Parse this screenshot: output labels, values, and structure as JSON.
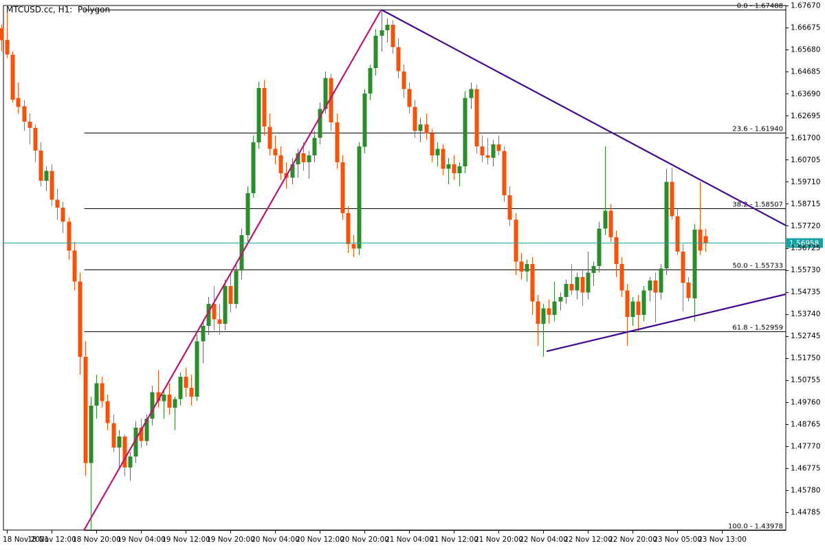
{
  "window": {
    "title": "MTCUSD.cc, H1:  Polygon"
  },
  "current_price": {
    "value": "1.56958"
  },
  "colors": {
    "background": "#ffffff",
    "bull_candle": "#2a8c2a",
    "bear_candle": "#f95208",
    "fib_line": "#000000",
    "trend_purple": "#41078f",
    "trend_magenta": "#bd1272",
    "price_line": "#1aa3a3",
    "badge_bg": "#17a2a2",
    "badge_text": "#ffffff",
    "axis_text": "#000000"
  },
  "chart_data": {
    "type": "candlestick",
    "symbol": "MTCUSD.cc",
    "timeframe": "H1",
    "data_source": "Polygon",
    "title": "MTCUSD.cc, H1:  Polygon",
    "legend_position": "none",
    "grid": "off",
    "y_axis_side": "right",
    "y_axis_ticks": [
      "1.67670",
      "1.66675",
      "1.65680",
      "1.64685",
      "1.63690",
      "1.62695",
      "1.61700",
      "1.60705",
      "1.59710",
      "1.58715",
      "1.57720",
      "1.56725",
      "1.55730",
      "1.54735",
      "1.53740",
      "1.52745",
      "1.51750",
      "1.50755",
      "1.49760",
      "1.48765",
      "1.47770",
      "1.46775",
      "1.45780",
      "1.44785"
    ],
    "y_range": [
      1.43978,
      1.6767
    ],
    "x_labels": [
      {
        "label": "18 Nov 2021",
        "index": 1
      },
      {
        "label": "18 Nov 12:00",
        "index": 9
      },
      {
        "label": "18 Nov 20:00",
        "index": 17
      },
      {
        "label": "19 Nov 04:00",
        "index": 25
      },
      {
        "label": "19 Nov 12:00",
        "index": 33
      },
      {
        "label": "19 Nov 20:00",
        "index": 41
      },
      {
        "label": "20 Nov 04:00",
        "index": 49
      },
      {
        "label": "20 Nov 12:00",
        "index": 57
      },
      {
        "label": "20 Nov 20:00",
        "index": 65
      },
      {
        "label": "21 Nov 04:00",
        "index": 73
      },
      {
        "label": "21 Nov 12:00",
        "index": 81
      },
      {
        "label": "21 Nov 20:00",
        "index": 89
      },
      {
        "label": "22 Nov 04:00",
        "index": 97
      },
      {
        "label": "22 Nov 12:00",
        "index": 105
      },
      {
        "label": "22 Nov 20:00",
        "index": 113
      },
      {
        "label": "23 Nov 05:00",
        "index": 121
      },
      {
        "label": "23 Nov 13:00",
        "index": 129
      }
    ],
    "fib_levels": [
      {
        "level": "0.0",
        "price": 1.67488
      },
      {
        "level": "23.6",
        "price": 1.6194
      },
      {
        "level": "38.2",
        "price": 1.58507
      },
      {
        "level": "50.0",
        "price": 1.55733
      },
      {
        "level": "61.8",
        "price": 1.52959
      },
      {
        "level": "100.0",
        "price": 1.43978
      }
    ],
    "fib_start_index": 14.8,
    "trendlines": [
      {
        "name": "impulse-up",
        "color": "trend_magenta",
        "from": {
          "index": 14.8,
          "price": 1.43978
        },
        "to": {
          "index": 68,
          "price": 1.67488
        }
      },
      {
        "name": "triangle-resistance",
        "color": "trend_purple",
        "from": {
          "index": 68,
          "price": 1.67488
        },
        "to": {
          "index": 140.4,
          "price": 1.5774
        }
      },
      {
        "name": "triangle-support",
        "color": "trend_purple",
        "from": {
          "index": 97.6,
          "price": 1.52051
        },
        "to": {
          "index": 140.4,
          "price": 1.54629
        }
      }
    ],
    "candles_ohlc": [
      [
        1.6665,
        1.668,
        1.656,
        1.661
      ],
      [
        1.6612,
        1.6736,
        1.653,
        1.6546
      ],
      [
        1.6546,
        1.656,
        1.633,
        1.6342
      ],
      [
        1.635,
        1.642,
        1.628,
        1.631
      ],
      [
        1.6312,
        1.634,
        1.62,
        1.6242
      ],
      [
        1.6242,
        1.628,
        1.614,
        1.6215
      ],
      [
        1.6215,
        1.623,
        1.606,
        1.6112
      ],
      [
        1.6112,
        1.615,
        1.595,
        1.5975
      ],
      [
        1.5975,
        1.604,
        1.593,
        1.602
      ],
      [
        1.602,
        1.605,
        1.586,
        1.589
      ],
      [
        1.589,
        1.594,
        1.58,
        1.5855
      ],
      [
        1.5855,
        1.588,
        1.574,
        1.579
      ],
      [
        1.579,
        1.581,
        1.562,
        1.566
      ],
      [
        1.566,
        1.57,
        1.548,
        1.552
      ],
      [
        1.552,
        1.556,
        1.51,
        1.518
      ],
      [
        1.518,
        1.525,
        1.4641,
        1.47
      ],
      [
        1.47,
        1.5,
        1.4398,
        1.496
      ],
      [
        1.496,
        1.51,
        1.49,
        1.506
      ],
      [
        1.506,
        1.509,
        1.495,
        1.498
      ],
      [
        1.498,
        1.501,
        1.485,
        1.488
      ],
      [
        1.488,
        1.492,
        1.475,
        1.477
      ],
      [
        1.477,
        1.485,
        1.468,
        1.482
      ],
      [
        1.482,
        1.483,
        1.464,
        1.468
      ],
      [
        1.468,
        1.475,
        1.462,
        1.473
      ],
      [
        1.473,
        1.489,
        1.47,
        1.486
      ],
      [
        1.486,
        1.49,
        1.477,
        1.48
      ],
      [
        1.48,
        1.492,
        1.478,
        1.49
      ],
      [
        1.49,
        1.505,
        1.487,
        1.502
      ],
      [
        1.502,
        1.512,
        1.495,
        1.498
      ],
      [
        1.498,
        1.503,
        1.49,
        1.501
      ],
      [
        1.501,
        1.506,
        1.492,
        1.495
      ],
      [
        1.495,
        1.5,
        1.485,
        1.499
      ],
      [
        1.499,
        1.511,
        1.496,
        1.509
      ],
      [
        1.509,
        1.513,
        1.5,
        1.504
      ],
      [
        1.504,
        1.51,
        1.496,
        1.5
      ],
      [
        1.5,
        1.528,
        1.498,
        1.525
      ],
      [
        1.525,
        1.535,
        1.515,
        1.532
      ],
      [
        1.532,
        1.545,
        1.528,
        1.542
      ],
      [
        1.542,
        1.55,
        1.53,
        1.535
      ],
      [
        1.535,
        1.542,
        1.528,
        1.533
      ],
      [
        1.533,
        1.553,
        1.53,
        1.55
      ],
      [
        1.55,
        1.556,
        1.538,
        1.542
      ],
      [
        1.542,
        1.56,
        1.54,
        1.557
      ],
      [
        1.557,
        1.576,
        1.553,
        1.573
      ],
      [
        1.573,
        1.595,
        1.57,
        1.592
      ],
      [
        1.592,
        1.618,
        1.59,
        1.615
      ],
      [
        1.615,
        1.6425,
        1.612,
        1.6395
      ],
      [
        1.6395,
        1.643,
        1.618,
        1.622
      ],
      [
        1.622,
        1.628,
        1.609,
        1.612
      ],
      [
        1.612,
        1.618,
        1.605,
        1.609
      ],
      [
        1.609,
        1.613,
        1.598,
        1.601
      ],
      [
        1.601,
        1.606,
        1.594,
        1.599
      ],
      [
        1.599,
        1.608,
        1.596,
        1.605
      ],
      [
        1.605,
        1.612,
        1.599,
        1.61
      ],
      [
        1.61,
        1.615,
        1.602,
        1.606
      ],
      [
        1.606,
        1.611,
        1.5985,
        1.609
      ],
      [
        1.609,
        1.62,
        1.606,
        1.617
      ],
      [
        1.617,
        1.633,
        1.614,
        1.63
      ],
      [
        1.63,
        1.647,
        1.628,
        1.644
      ],
      [
        1.644,
        1.646,
        1.62,
        1.624
      ],
      [
        1.624,
        1.628,
        1.603,
        1.606
      ],
      [
        1.606,
        1.609,
        1.58,
        1.583
      ],
      [
        1.583,
        1.586,
        1.565,
        1.569
      ],
      [
        1.569,
        1.573,
        1.563,
        1.567
      ],
      [
        1.567,
        1.615,
        1.564,
        1.613
      ],
      [
        1.613,
        1.639,
        1.61,
        1.637
      ],
      [
        1.637,
        1.65,
        1.634,
        1.6485
      ],
      [
        1.6485,
        1.666,
        1.645,
        1.663
      ],
      [
        1.663,
        1.67488,
        1.656,
        1.6655
      ],
      [
        1.6655,
        1.671,
        1.66,
        1.668
      ],
      [
        1.668,
        1.67,
        1.655,
        1.658
      ],
      [
        1.658,
        1.662,
        1.644,
        1.647
      ],
      [
        1.647,
        1.65,
        1.635,
        1.639
      ],
      [
        1.639,
        1.642,
        1.628,
        1.631
      ],
      [
        1.631,
        1.634,
        1.617,
        1.62
      ],
      [
        1.62,
        1.626,
        1.615,
        1.623
      ],
      [
        1.623,
        1.628,
        1.616,
        1.619
      ],
      [
        1.619,
        1.621,
        1.606,
        1.609
      ],
      [
        1.609,
        1.615,
        1.604,
        1.612
      ],
      [
        1.612,
        1.614,
        1.6,
        1.603
      ],
      [
        1.603,
        1.608,
        1.596,
        1.605
      ],
      [
        1.605,
        1.609,
        1.598,
        1.601
      ],
      [
        1.601,
        1.606,
        1.595,
        1.604
      ],
      [
        1.604,
        1.638,
        1.601,
        1.635
      ],
      [
        1.635,
        1.642,
        1.63,
        1.639
      ],
      [
        1.639,
        1.641,
        1.61,
        1.613
      ],
      [
        1.613,
        1.618,
        1.606,
        1.609
      ],
      [
        1.609,
        1.617,
        1.605,
        1.608
      ],
      [
        1.608,
        1.616,
        1.604,
        1.614
      ],
      [
        1.614,
        1.618,
        1.609,
        1.611
      ],
      [
        1.611,
        1.613,
        1.588,
        1.591
      ],
      [
        1.591,
        1.595,
        1.577,
        1.58
      ],
      [
        1.58,
        1.583,
        1.555,
        1.561
      ],
      [
        1.561,
        1.565,
        1.553,
        1.5565
      ],
      [
        1.5565,
        1.562,
        1.552,
        1.56
      ],
      [
        1.56,
        1.563,
        1.537,
        1.543
      ],
      [
        1.543,
        1.546,
        1.523,
        1.533
      ],
      [
        1.533,
        1.542,
        1.518,
        1.54
      ],
      [
        1.54,
        1.544,
        1.533,
        1.537
      ],
      [
        1.537,
        1.552,
        1.534,
        1.543
      ],
      [
        1.543,
        1.547,
        1.539,
        1.545
      ],
      [
        1.545,
        1.553,
        1.542,
        1.551
      ],
      [
        1.551,
        1.56,
        1.546,
        1.548
      ],
      [
        1.548,
        1.556,
        1.544,
        1.554
      ],
      [
        1.554,
        1.557,
        1.541,
        1.547
      ],
      [
        1.547,
        1.5655,
        1.544,
        1.556
      ],
      [
        1.556,
        1.561,
        1.55,
        1.559
      ],
      [
        1.559,
        1.579,
        1.556,
        1.576
      ],
      [
        1.576,
        1.613,
        1.573,
        1.584
      ],
      [
        1.584,
        1.587,
        1.57,
        1.572
      ],
      [
        1.572,
        1.575,
        1.554,
        1.56
      ],
      [
        1.56,
        1.563,
        1.545,
        1.548
      ],
      [
        1.548,
        1.551,
        1.523,
        1.536
      ],
      [
        1.536,
        1.545,
        1.532,
        1.543
      ],
      [
        1.543,
        1.546,
        1.5295,
        1.537
      ],
      [
        1.537,
        1.55,
        1.534,
        1.548
      ],
      [
        1.548,
        1.554,
        1.543,
        1.5525
      ],
      [
        1.5525,
        1.556,
        1.5335,
        1.547
      ],
      [
        1.547,
        1.56,
        1.544,
        1.558
      ],
      [
        1.558,
        1.603,
        1.555,
        1.597
      ],
      [
        1.597,
        1.6035,
        1.58,
        1.5815
      ],
      [
        1.5815,
        1.585,
        1.564,
        1.5655
      ],
      [
        1.5655,
        1.569,
        1.5385,
        1.5515
      ],
      [
        1.5515,
        1.554,
        1.543,
        1.5445
      ],
      [
        1.5445,
        1.578,
        1.534,
        1.5755
      ],
      [
        1.5755,
        1.597,
        1.564,
        1.566
      ],
      [
        1.5725,
        1.576,
        1.5655,
        1.56958
      ]
    ]
  }
}
